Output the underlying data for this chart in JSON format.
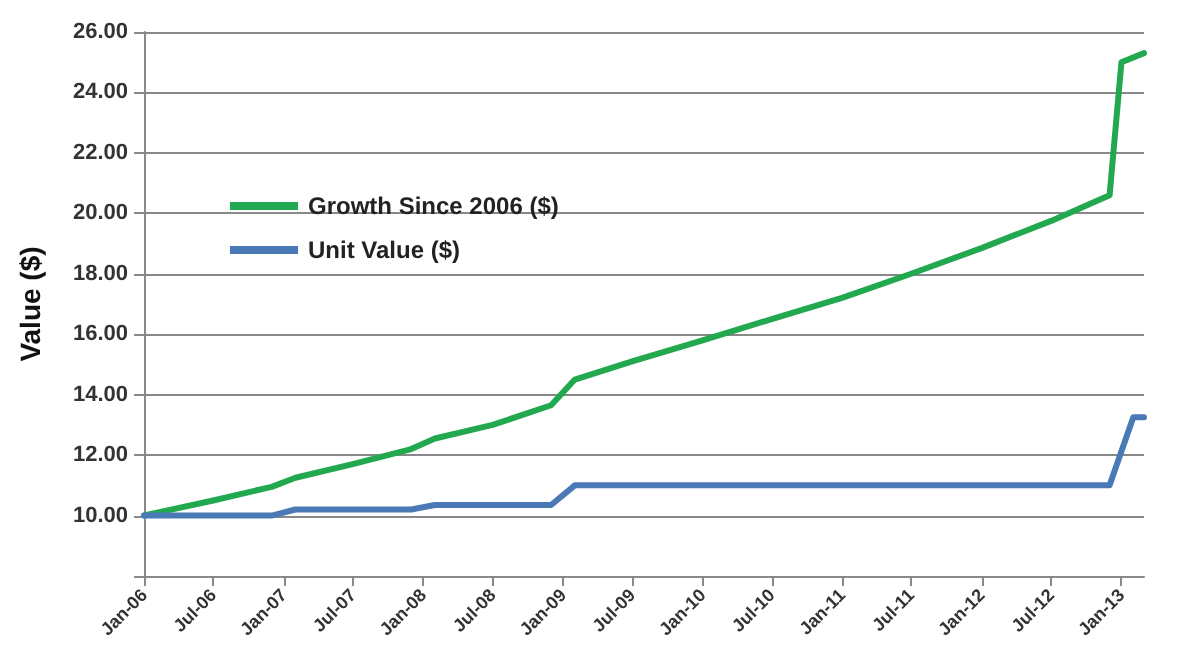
{
  "chart_data": {
    "type": "line",
    "ylabel": "Value ($)",
    "xlim": [
      "2006-01",
      "2013-03"
    ],
    "xticks": [
      {
        "value": "2006-01",
        "label": "Jan-06"
      },
      {
        "value": "2006-07",
        "label": "Jul-06"
      },
      {
        "value": "2007-01",
        "label": "Jan-07"
      },
      {
        "value": "2007-07",
        "label": "Jul-07"
      },
      {
        "value": "2008-01",
        "label": "Jan-08"
      },
      {
        "value": "2008-07",
        "label": "Jul-08"
      },
      {
        "value": "2009-01",
        "label": "Jan-09"
      },
      {
        "value": "2009-07",
        "label": "Jul-09"
      },
      {
        "value": "2010-01",
        "label": "Jan-10"
      },
      {
        "value": "2010-07",
        "label": "Jul-10"
      },
      {
        "value": "2011-01",
        "label": "Jan-11"
      },
      {
        "value": "2011-07",
        "label": "Jul-11"
      },
      {
        "value": "2012-01",
        "label": "Jan-12"
      },
      {
        "value": "2012-07",
        "label": "Jul-12"
      },
      {
        "value": "2013-01",
        "label": "Jan-13"
      }
    ],
    "ylim": [
      8,
      26
    ],
    "yticks": [
      {
        "value": 8,
        "label": null
      },
      {
        "value": 10,
        "label": "10.00"
      },
      {
        "value": 12,
        "label": "12.00"
      },
      {
        "value": 14,
        "label": "14.00"
      },
      {
        "value": 16,
        "label": "16.00"
      },
      {
        "value": 18,
        "label": "18.00"
      },
      {
        "value": 20,
        "label": "20.00"
      },
      {
        "value": 22,
        "label": "22.00"
      },
      {
        "value": 24,
        "label": "24.00"
      },
      {
        "value": 26,
        "label": "26.00"
      }
    ],
    "grid": "y",
    "legend": "top left",
    "marker": "none",
    "line_style": "solid",
    "series": [
      {
        "name": "Growth Since 2006 ($)",
        "color": "#22a84e",
        "x": [
          "2006-01",
          "2006-07",
          "2006-12",
          "2007-02",
          "2007-07",
          "2007-12",
          "2008-02",
          "2008-07",
          "2008-12",
          "2009-02",
          "2009-07",
          "2010-01",
          "2010-07",
          "2011-01",
          "2011-07",
          "2012-01",
          "2012-07",
          "2012-12",
          "2013-01",
          "2013-03"
        ],
        "values": [
          10.0,
          10.5,
          10.95,
          11.25,
          11.7,
          12.2,
          12.55,
          13.0,
          13.65,
          14.5,
          15.1,
          15.8,
          16.5,
          17.2,
          18.0,
          18.85,
          19.75,
          20.6,
          25.0,
          25.3
        ]
      },
      {
        "name": "Unit Value ($)",
        "color": "#4a7ab5",
        "x": [
          "2006-01",
          "2006-12",
          "2007-02",
          "2007-12",
          "2008-02",
          "2008-12",
          "2009-02",
          "2012-12",
          "2013-02",
          "2013-03"
        ],
        "values": [
          10.0,
          10.0,
          10.2,
          10.2,
          10.35,
          10.35,
          11.0,
          11.0,
          13.25,
          13.25
        ]
      }
    ]
  }
}
